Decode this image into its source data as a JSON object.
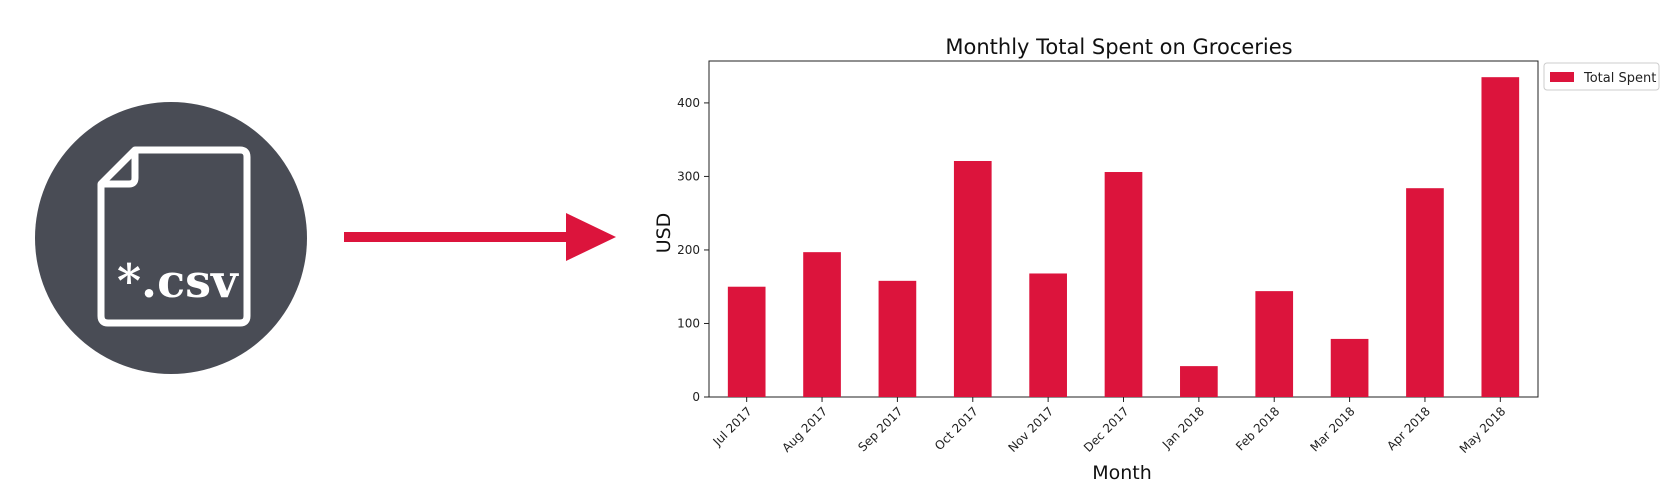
{
  "icon": {
    "name": "csv-file-icon",
    "label": "*.csv",
    "circle_color": "#494c55",
    "stroke_color": "#ffffff"
  },
  "arrow": {
    "name": "arrow-right-icon",
    "color": "#dc143c"
  },
  "chart_data": {
    "type": "bar",
    "title": "Monthly Total Spent on Groceries",
    "xlabel": "Month",
    "ylabel": "USD",
    "categories": [
      "Jul 2017",
      "Aug 2017",
      "Sep 2017",
      "Oct 2017",
      "Nov 2017",
      "Dec 2017",
      "Jan 2018",
      "Feb 2018",
      "Mar 2018",
      "Apr 2018",
      "May 2018"
    ],
    "series": [
      {
        "name": "Total Spent",
        "color": "#dc143c",
        "values": [
          150,
          197,
          158,
          321,
          168,
          306,
          42,
          144,
          79,
          284,
          435
        ]
      }
    ],
    "ylim": [
      0,
      457
    ],
    "yticks": [
      0,
      100,
      200,
      300,
      400
    ],
    "legend": "outside-top-right",
    "grid": false
  }
}
